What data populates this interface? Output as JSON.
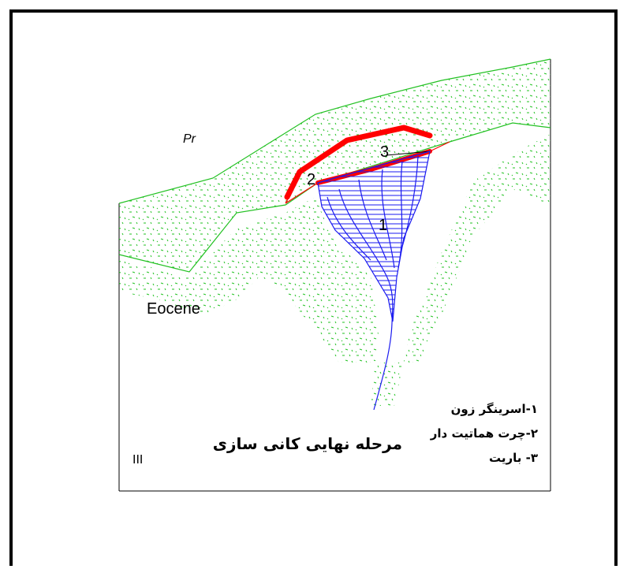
{
  "diagram": {
    "unit_label": "Eocene",
    "top_unit_symbol": "Pr",
    "stage_number": "III",
    "title": "مرحله نهایی کانی سازی",
    "callouts": [
      "1",
      "2",
      "3"
    ],
    "legend": [
      "۱-اسرینگر زون",
      "۲-چرت هماتیت دار",
      "۳- باریت"
    ],
    "colors": {
      "green_layer": "#22c122",
      "stockwork": "#1a1af0",
      "red_lens": "#ff0000",
      "frame": "#000000"
    }
  }
}
